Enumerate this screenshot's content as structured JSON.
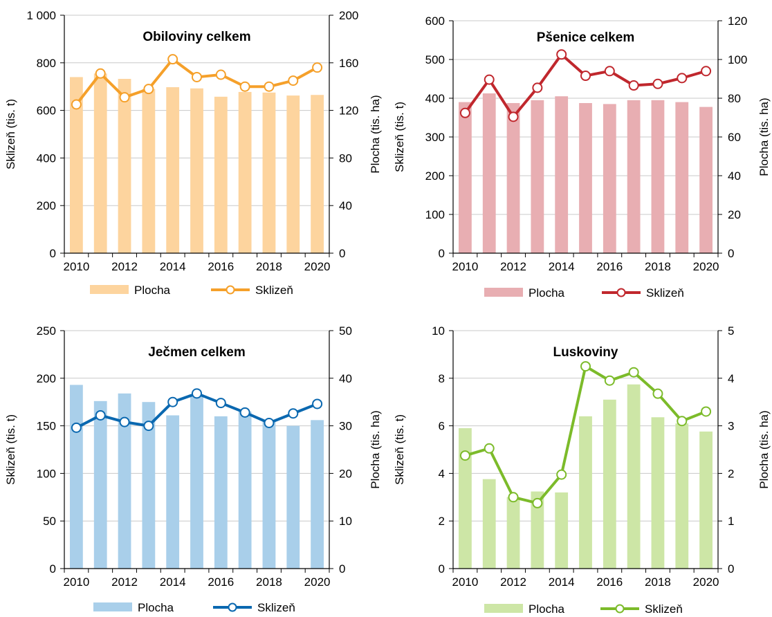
{
  "chart_data": [
    {
      "type": "bar",
      "title": "Obiloviny celkem",
      "x": [
        2010,
        2011,
        2012,
        2013,
        2014,
        2015,
        2016,
        2017,
        2018,
        2019,
        2020
      ],
      "x_ticks": [
        "2010",
        "2012",
        "2014",
        "2016",
        "2018",
        "2020"
      ],
      "ylabel": "Sklizeň (tis. t)",
      "y2label": "Plocha (tis. ha)",
      "ylim": [
        0,
        1000
      ],
      "y2lim": [
        0,
        200
      ],
      "y_ticks": [
        "0",
        "200",
        "400",
        "600",
        "800",
        "1 000"
      ],
      "y2_ticks": [
        "0",
        "40",
        "80",
        "120",
        "160",
        "200"
      ],
      "grid": true,
      "legend_position": "bottom",
      "colors": {
        "bar": "#fdd49e",
        "line": "#f5a02a"
      },
      "series": [
        {
          "name": "Plocha",
          "type": "bar",
          "axis": "right",
          "values": [
            148,
            151,
            146.5,
            138,
            139.5,
            138.5,
            131.5,
            135.5,
            135,
            132.5,
            133
          ]
        },
        {
          "name": "Sklizeň",
          "type": "line",
          "axis": "left",
          "values": [
            625,
            755,
            655,
            690,
            815,
            740,
            750,
            700,
            700,
            725,
            780
          ]
        }
      ]
    },
    {
      "type": "bar",
      "title": "Pšenice celkem",
      "x": [
        2010,
        2011,
        2012,
        2013,
        2014,
        2015,
        2016,
        2017,
        2018,
        2019,
        2020
      ],
      "x_ticks": [
        "2010",
        "2012",
        "2014",
        "2016",
        "2018",
        "2020"
      ],
      "ylabel": "Sklizeň (tis. t)",
      "y2label": "Plocha (tis. ha)",
      "ylim": [
        0,
        600
      ],
      "y2lim": [
        0,
        120
      ],
      "y_ticks": [
        "0",
        "100",
        "200",
        "300",
        "400",
        "500",
        "600"
      ],
      "y2_ticks": [
        "0",
        "20",
        "40",
        "60",
        "80",
        "100",
        "120"
      ],
      "grid": true,
      "legend_position": "bottom",
      "colors": {
        "bar": "#e8aeb2",
        "line": "#c0272d"
      },
      "series": [
        {
          "name": "Plocha",
          "type": "bar",
          "axis": "right",
          "values": [
            78,
            82.5,
            77.5,
            79,
            81,
            77.5,
            77,
            79,
            79,
            78,
            75.5
          ]
        },
        {
          "name": "Sklizeň",
          "type": "line",
          "axis": "left",
          "values": [
            362,
            448,
            352,
            427,
            513,
            458,
            470,
            433,
            437,
            452,
            470
          ]
        }
      ]
    },
    {
      "type": "bar",
      "title": "Ječmen celkem",
      "x": [
        2010,
        2011,
        2012,
        2013,
        2014,
        2015,
        2016,
        2017,
        2018,
        2019,
        2020
      ],
      "x_ticks": [
        "2010",
        "2012",
        "2014",
        "2016",
        "2018",
        "2020"
      ],
      "ylabel": "Sklizeň (tis. t)",
      "y2label": "Plocha (tis. ha)",
      "ylim": [
        0,
        250
      ],
      "y2lim": [
        0,
        50
      ],
      "y_ticks": [
        "0",
        "50",
        "100",
        "150",
        "200",
        "250"
      ],
      "y2_ticks": [
        "0",
        "10",
        "20",
        "30",
        "40",
        "50"
      ],
      "grid": true,
      "legend_position": "bottom",
      "colors": {
        "bar": "#a9cfea",
        "line": "#0a68b0"
      },
      "series": [
        {
          "name": "Plocha",
          "type": "bar",
          "axis": "right",
          "values": [
            38.6,
            35.2,
            36.8,
            35,
            32.2,
            36.6,
            32,
            33,
            31.2,
            30,
            31.2
          ]
        },
        {
          "name": "Sklizeň",
          "type": "line",
          "axis": "left",
          "values": [
            148,
            161,
            154,
            150,
            175,
            184,
            174,
            164,
            153,
            163,
            173
          ]
        }
      ]
    },
    {
      "type": "bar",
      "title": "Luskoviny",
      "x": [
        2010,
        2011,
        2012,
        2013,
        2014,
        2015,
        2016,
        2017,
        2018,
        2019,
        2020
      ],
      "x_ticks": [
        "2010",
        "2012",
        "2014",
        "2016",
        "2018",
        "2020"
      ],
      "ylabel": "Sklizeň (tis. t)",
      "y2label": "Plocha (tis. ha)",
      "ylim": [
        0,
        10
      ],
      "y2lim": [
        0,
        5
      ],
      "y_ticks": [
        "0",
        "2",
        "4",
        "6",
        "8",
        "10"
      ],
      "y2_ticks": [
        "0",
        "1",
        "2",
        "3",
        "4",
        "5"
      ],
      "grid": true,
      "legend_position": "bottom",
      "colors": {
        "bar": "#cde6a6",
        "line": "#7cbb2a"
      },
      "series": [
        {
          "name": "Plocha",
          "type": "bar",
          "axis": "right",
          "values": [
            2.95,
            1.88,
            1.5,
            1.62,
            1.6,
            3.2,
            3.55,
            3.87,
            3.18,
            3.05,
            2.88
          ]
        },
        {
          "name": "Sklizeň",
          "type": "line",
          "axis": "left",
          "values": [
            4.75,
            5.05,
            3.0,
            2.75,
            3.95,
            8.5,
            7.9,
            8.25,
            7.35,
            6.2,
            6.6
          ]
        }
      ]
    }
  ]
}
